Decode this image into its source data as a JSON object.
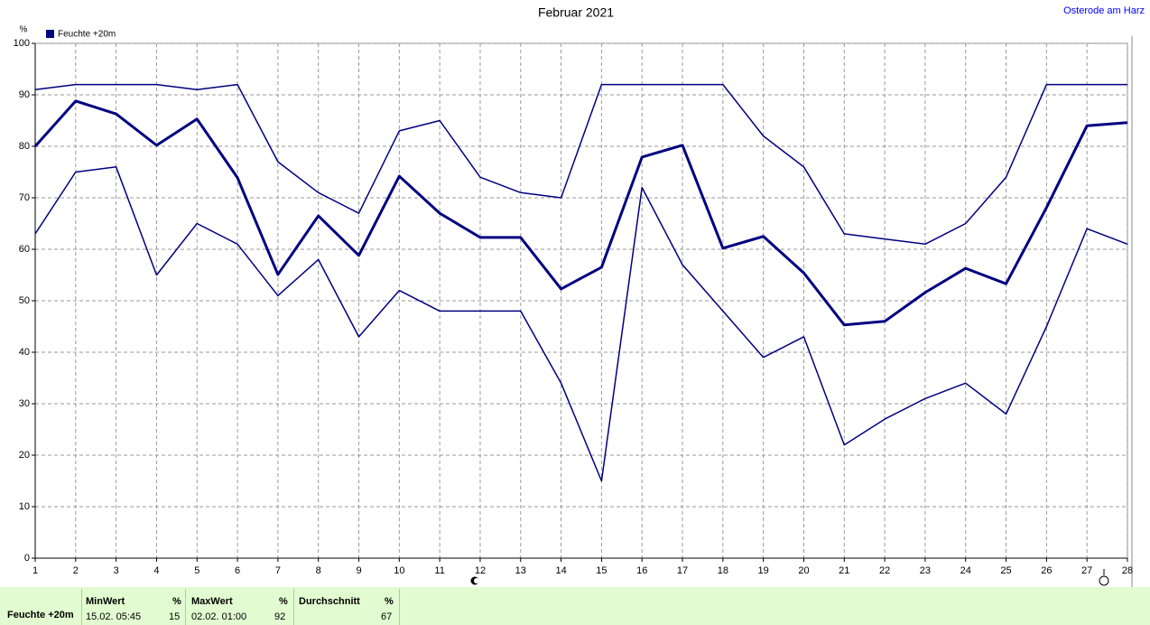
{
  "chart_data": {
    "type": "line",
    "title": "Februar 2021",
    "location": "Osterode am Harz",
    "y_unit": "%",
    "x": [
      1,
      2,
      3,
      4,
      5,
      6,
      7,
      8,
      9,
      10,
      11,
      12,
      13,
      14,
      15,
      16,
      17,
      18,
      19,
      20,
      21,
      22,
      23,
      24,
      25,
      26,
      27,
      28
    ],
    "xlim": [
      1,
      28
    ],
    "xticks": [
      1,
      2,
      3,
      4,
      5,
      6,
      7,
      8,
      9,
      10,
      11,
      12,
      13,
      14,
      15,
      16,
      17,
      18,
      19,
      20,
      21,
      22,
      23,
      24,
      25,
      26,
      27,
      28
    ],
    "ylim": [
      0,
      100
    ],
    "yticks": [
      0,
      10,
      20,
      30,
      40,
      50,
      60,
      70,
      80,
      90,
      100
    ],
    "grid": true,
    "series": [
      {
        "name": "Feuchte +20m",
        "color": "#000080",
        "width": 3,
        "values": [
          80,
          88.8,
          86.3,
          80.2,
          85.3,
          73.9,
          55.1,
          66.5,
          58.8,
          74.2,
          67,
          62.3,
          62.3,
          52.3,
          56.5,
          77.9,
          80.2,
          60.2,
          62.5,
          55.4,
          45.3,
          46,
          51.6,
          56.3,
          53.3,
          68.1,
          84,
          84.6
        ]
      },
      {
        "color": "#000080",
        "width": 1.5,
        "values": [
          91,
          92,
          92,
          92,
          91,
          92,
          77,
          71,
          67,
          83,
          85,
          74,
          71,
          70,
          92,
          92,
          92,
          92,
          82,
          76,
          63,
          62,
          61,
          65,
          74,
          92,
          92,
          92
        ]
      },
      {
        "color": "#000080",
        "width": 1.5,
        "values": [
          63,
          75,
          76,
          55,
          65,
          61,
          51,
          58,
          43,
          52,
          48,
          48,
          48,
          34,
          15,
          72,
          57,
          48,
          39,
          43,
          22,
          27,
          31,
          34,
          28,
          45,
          64,
          61
        ]
      }
    ]
  },
  "stats": {
    "row_label": "Feuchte +20m",
    "columns": [
      {
        "header": "MinWert",
        "unit": "%",
        "time": "15.02.  05:45",
        "value": 15
      },
      {
        "header": "MaxWert",
        "unit": "%",
        "time": "02.02.  01:00",
        "value": 92
      },
      {
        "header": "Durchschnitt",
        "unit": "%",
        "value": 67
      }
    ]
  }
}
